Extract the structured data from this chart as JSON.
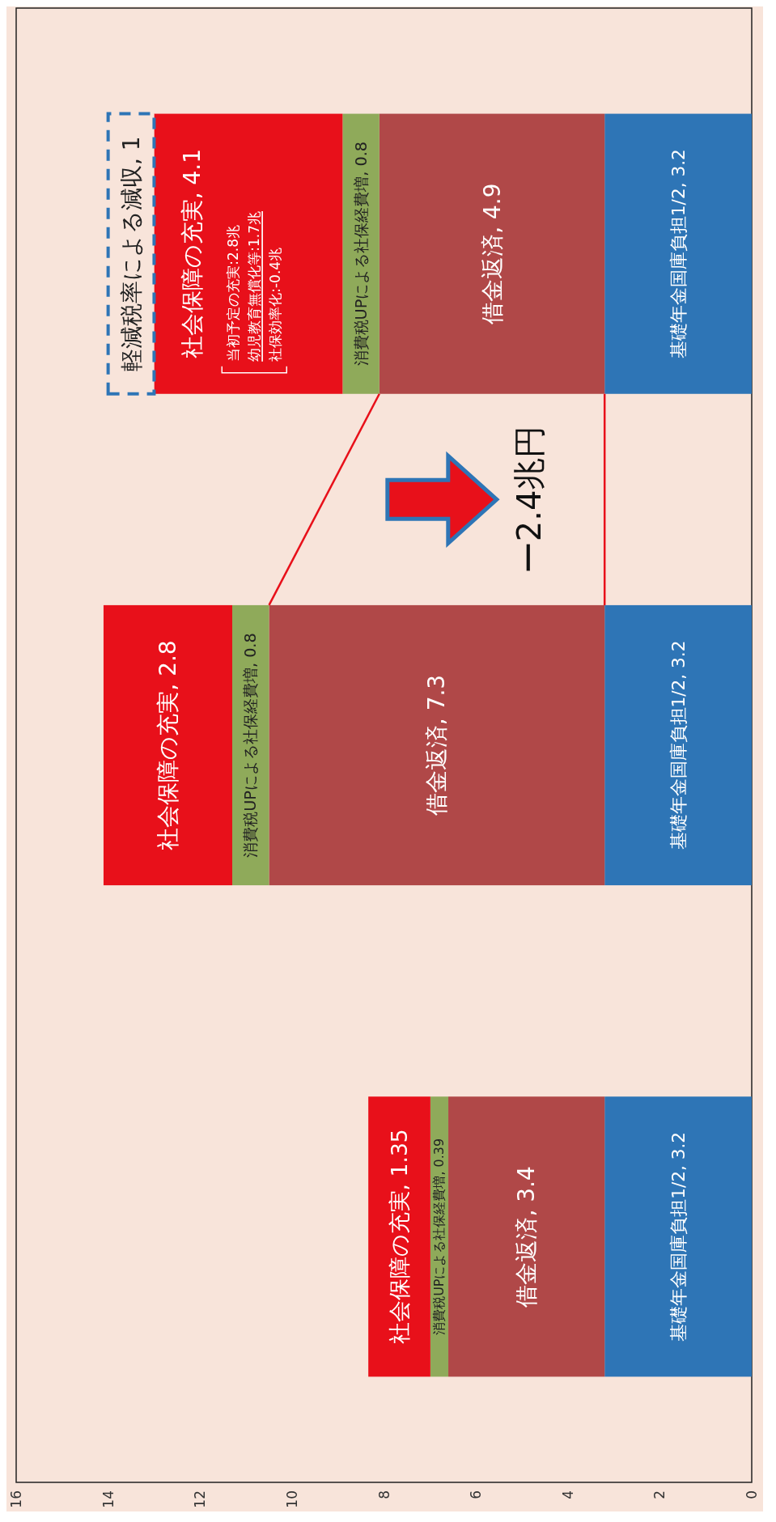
{
  "chart_data": {
    "type": "bar",
    "stacked": true,
    "orientation": "horizontal",
    "categories": [
      null,
      null,
      null
    ],
    "series": [
      {
        "color": "#2e75b6",
        "values": [
          3.2,
          3.2,
          3.2
        ],
        "value_labels": [
          "基礎年金国庫負担1/2, 3.2",
          "基礎年金国庫負担1/2, 3.2",
          "基礎年金国庫負担1/2, 3.2"
        ]
      },
      {
        "color": "#b04848",
        "values": [
          4.9,
          7.3,
          3.4
        ],
        "value_labels": [
          "借金返済, 4.9",
          "借金返済, 7.3",
          "借金返済, 3.4"
        ]
      },
      {
        "color": "#8faa5a",
        "values": [
          0.8,
          0.8,
          0.39
        ],
        "value_labels": [
          "消費税UPによる社保経費増, 0.8",
          "消費税UPによる社保経費増, 0.8",
          "消費税UPによる社保経費増, 0.39"
        ]
      },
      {
        "color": "#e8101a",
        "values": [
          4.1,
          2.8,
          1.35
        ],
        "value_labels": [
          "社会保障の充実, 4.1",
          "社会保障の充実, 2.8",
          "社会保障の充実, 1.35"
        ]
      },
      {
        "color": "#2e75b6",
        "line_style": "dashed",
        "values": [
          1,
          null,
          null
        ],
        "value_labels": [
          "軽減税率による減収, 1",
          null,
          null
        ]
      }
    ],
    "xlim": [
      16,
      0
    ],
    "xticks": [
      0,
      2,
      4,
      6,
      8,
      10,
      12,
      14,
      16
    ],
    "annotations": [
      "当初予定の充実:2.8兆",
      "幼児教育無償化等:1.7兆",
      "社保効率化:-0.4兆",
      "ー2.4兆円"
    ]
  }
}
